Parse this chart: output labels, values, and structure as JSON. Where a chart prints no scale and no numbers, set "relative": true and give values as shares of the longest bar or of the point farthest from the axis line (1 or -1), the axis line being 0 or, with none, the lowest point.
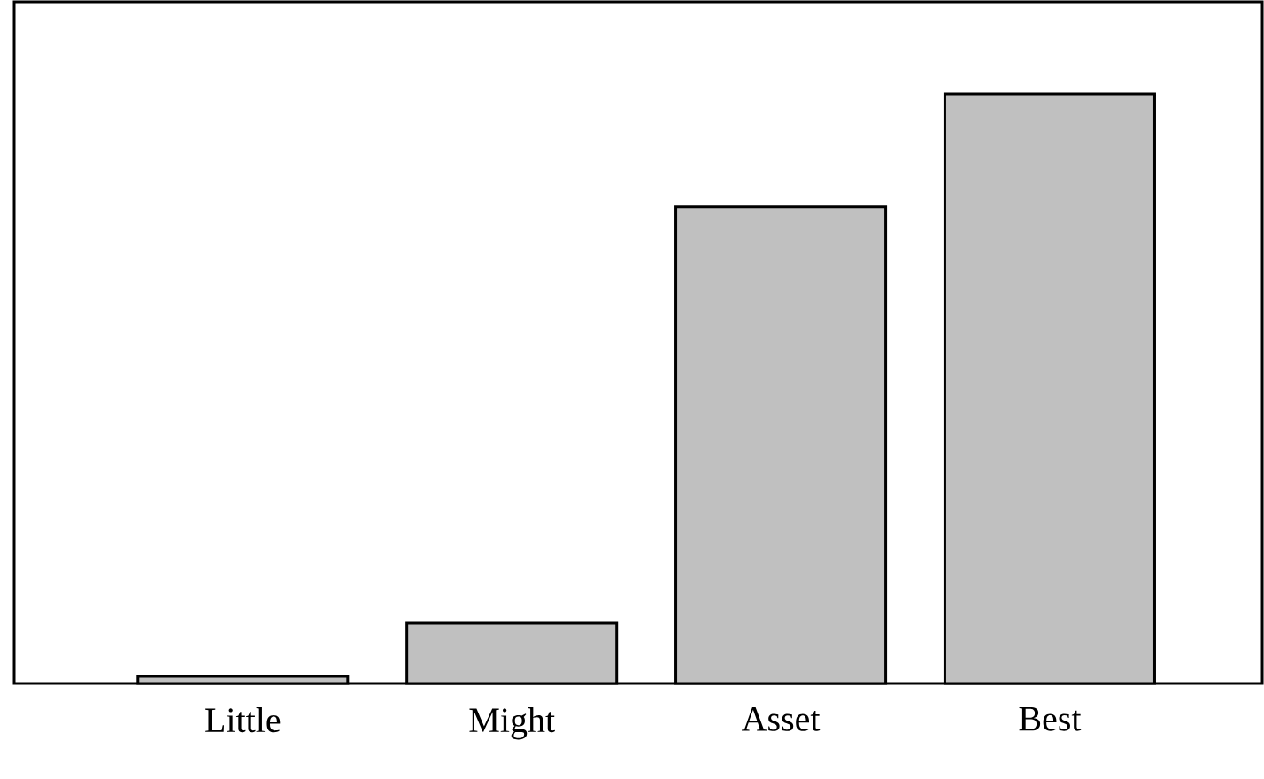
{
  "chart_data": {
    "type": "bar",
    "relative": true,
    "color": "#c0c0c0",
    "categories": [
      "Little",
      "Might",
      "Asset",
      "Best"
    ],
    "values": [
      0.012,
      0.102,
      0.808,
      1.0
    ]
  }
}
